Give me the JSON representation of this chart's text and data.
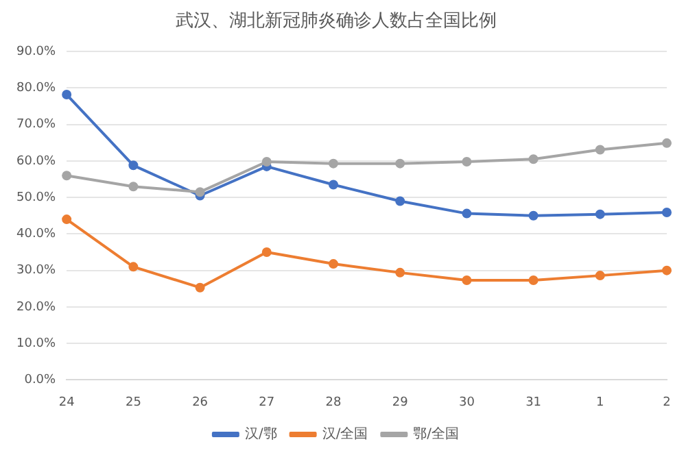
{
  "chart_data": {
    "type": "line",
    "title": "武汉、湖北新冠肺炎确诊人数占全国比例",
    "categories": [
      "24",
      "25",
      "26",
      "27",
      "28",
      "29",
      "30",
      "31",
      "1",
      "2"
    ],
    "series": [
      {
        "name": "汉/鄂",
        "color": "#4472c4",
        "values": [
          78.2,
          58.8,
          50.5,
          58.5,
          53.5,
          49,
          45.6,
          45.0,
          45.4,
          45.9
        ]
      },
      {
        "name": "汉/全国",
        "color": "#ed7d31",
        "values": [
          44.0,
          31.0,
          25.3,
          35.0,
          31.8,
          29.4,
          27.3,
          27.3,
          28.6,
          30.0
        ]
      },
      {
        "name": "鄂/全国",
        "color": "#a5a5a5",
        "values": [
          56.0,
          53.0,
          51.5,
          59.8,
          59.3,
          59.3,
          59.8,
          60.5,
          63.1,
          64.9
        ]
      }
    ],
    "ylim": [
      0,
      90
    ],
    "yticks": [
      {
        "value": 0,
        "label": "0.0%"
      },
      {
        "value": 10,
        "label": "10.0%"
      },
      {
        "value": 20,
        "label": "20.0%"
      },
      {
        "value": 30,
        "label": "30.0%"
      },
      {
        "value": 40,
        "label": "40.0%"
      },
      {
        "value": 50,
        "label": "50.0%"
      },
      {
        "value": 60,
        "label": "60.0%"
      },
      {
        "value": 70,
        "label": "70.0%"
      },
      {
        "value": 80,
        "label": "80.0%"
      },
      {
        "value": 90,
        "label": "90.0%"
      }
    ],
    "grid": "y",
    "legend": "bottom",
    "marker": "circle",
    "line_style": "solid"
  }
}
